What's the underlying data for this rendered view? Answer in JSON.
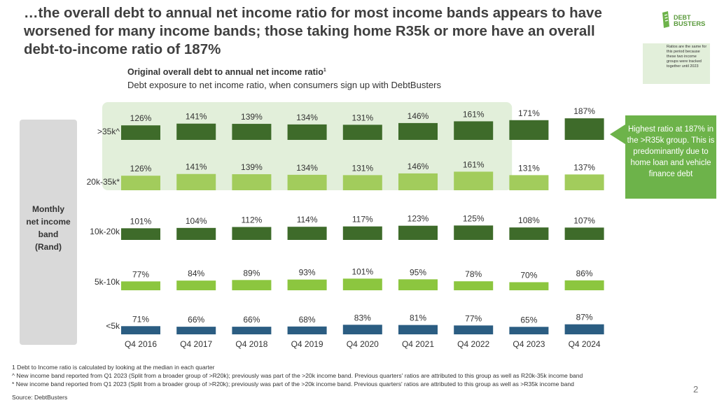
{
  "headline": "…the overall debt to annual net income ratio for most income bands appears to have worsened for many income bands; those taking home R35k or more have an overall debt-to-income ratio of 187%",
  "logo": {
    "line1": "DEBT",
    "line2": "BUSTERS"
  },
  "legend_note": "Ratios are the same for this period because these two income groups were tracked together until 2023",
  "y_axis_label_lines": [
    "Monthly",
    "net income",
    "band",
    "(Rand)"
  ],
  "callout": "Highest ratio at 187% in the >R35k group. This is predominantly due to home loan and vehicle finance debt",
  "footnotes": [
    "1 Debt to Income ratio is calculated by looking at the median in each quarter",
    "^ New income band reported from Q1 2023 (Split from a broader group of >R20k); previously was part of the >20k income band. Previous quarters' ratios are attributed to this group as well as R20k-35k income band",
    "* New income band reported from Q1 2023 (Split from a broader group of >R20k); previously was part of the >20k income band. Previous quarters' ratios are attributed to this group as well as >R35k income band"
  ],
  "source": "Source: DebtBusters",
  "page_number": "2",
  "chart_data": {
    "type": "bar",
    "title": "Original overall debt to annual net income ratio",
    "title_superscript": "1",
    "subtitle": "Debt exposure to net income ratio, when consumers sign up with DebtBusters",
    "categories": [
      "Q4 2016",
      "Q4 2017",
      "Q4 2018",
      "Q4 2019",
      "Q4 2020",
      "Q4 2021",
      "Q4 2022",
      "Q4 2023",
      "Q4 2024"
    ],
    "unit": "%",
    "series": [
      {
        "name": ">35k^",
        "values": [
          126,
          141,
          139,
          134,
          131,
          146,
          161,
          171,
          187
        ],
        "color": "#3e6b2a"
      },
      {
        "name": "20k-35k*",
        "values": [
          126,
          141,
          139,
          134,
          131,
          146,
          161,
          131,
          137
        ],
        "color": "#a2cc5c"
      },
      {
        "name": "10k-20k",
        "values": [
          101,
          104,
          112,
          114,
          117,
          123,
          125,
          108,
          107
        ],
        "color": "#3e6b2a"
      },
      {
        "name": "5k-10k",
        "values": [
          77,
          84,
          89,
          93,
          101,
          95,
          78,
          70,
          86
        ],
        "color": "#8cc63f"
      },
      {
        "name": "<5k",
        "values": [
          71,
          66,
          66,
          68,
          83,
          81,
          77,
          65,
          87
        ],
        "color": "#2b5d82"
      }
    ],
    "highlight_color": "#e2efda",
    "highlight_categories": [
      "Q4 2016",
      "Q4 2017",
      "Q4 2018",
      "Q4 2019",
      "Q4 2020",
      "Q4 2021",
      "Q4 2022"
    ],
    "highlight_series": [
      ">35k^",
      "20k-35k*"
    ],
    "ylim": [
      0,
      187
    ]
  }
}
